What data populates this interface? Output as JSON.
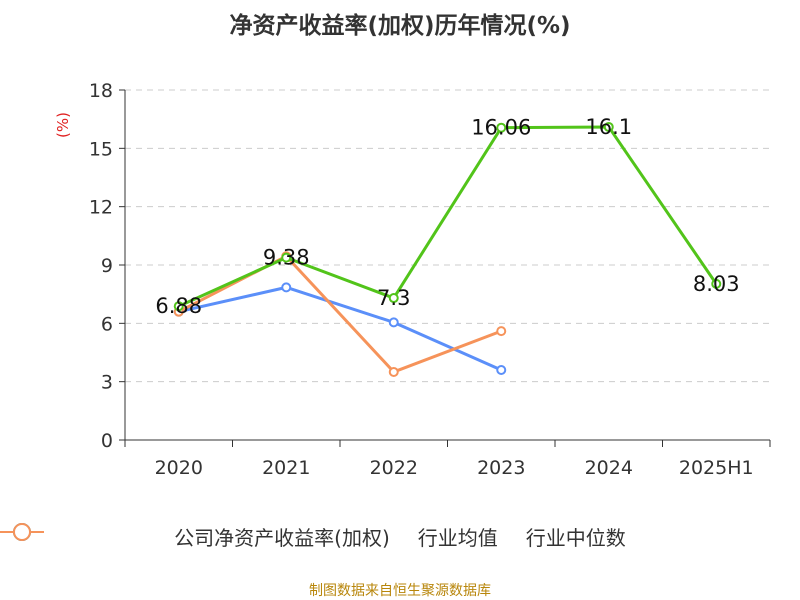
{
  "chart_data": {
    "type": "line",
    "title": "净资产收益率(加权)历年情况(%)",
    "ylabel": "(%)",
    "xlabel": "",
    "categories": [
      "2020",
      "2021",
      "2022",
      "2023",
      "2024",
      "2025H1"
    ],
    "ylim": [
      0,
      18
    ],
    "yticks": [
      "0",
      "3",
      "6",
      "9",
      "12",
      "15",
      "18"
    ],
    "grid": true,
    "legend_position": "bottom",
    "series": [
      {
        "name": "公司净资产收益率(加权)",
        "color": "#52c41a",
        "values": [
          6.88,
          9.38,
          7.3,
          16.06,
          16.1,
          8.03
        ],
        "labels": [
          "6.88",
          "9.38",
          "7.3",
          "16.06",
          "16.1",
          "8.03"
        ]
      },
      {
        "name": "行业均值",
        "color": "#5b8ff9",
        "values": [
          6.6,
          7.85,
          6.05,
          3.6,
          null,
          null
        ]
      },
      {
        "name": "行业中位数",
        "color": "#f6935a",
        "values": [
          6.6,
          9.45,
          3.5,
          5.6,
          null,
          null
        ]
      }
    ],
    "source": "制图数据来自恒生聚源数据库"
  }
}
